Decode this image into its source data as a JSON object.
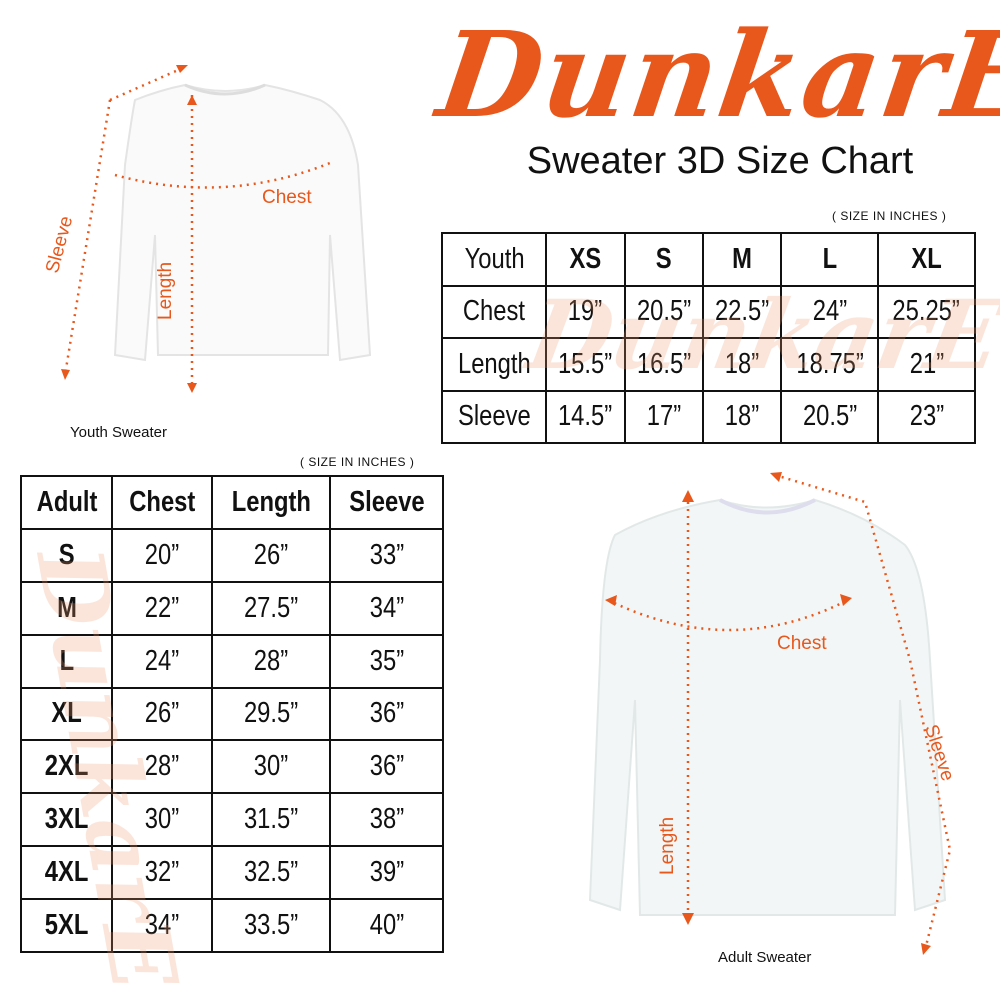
{
  "brand": {
    "logo_text": "DunkarE",
    "color": "#e8581c"
  },
  "title": "Sweater 3D Size Chart",
  "youth": {
    "units": "( SIZE IN INCHES )",
    "caption": "Youth Sweater",
    "diagram_labels": {
      "chest": "Chest",
      "length": "Length",
      "sleeve": "Sleeve"
    },
    "header": [
      "Youth",
      "XS",
      "S",
      "M",
      "L",
      "XL"
    ],
    "rows": [
      [
        "Chest",
        "19”",
        "20.5”",
        "22.5”",
        "24”",
        "25.25”"
      ],
      [
        "Length",
        "15.5”",
        "16.5”",
        "18”",
        "18.75”",
        "21”"
      ],
      [
        "Sleeve",
        "14.5”",
        "17”",
        "18”",
        "20.5”",
        "23”"
      ]
    ]
  },
  "adult": {
    "units": "( SIZE IN INCHES )",
    "caption": "Adult Sweater",
    "diagram_labels": {
      "chest": "Chest",
      "length": "Length",
      "sleeve": "Sleeve"
    },
    "header": [
      "Adult",
      "Chest",
      "Length",
      "Sleeve"
    ],
    "rows": [
      [
        "S",
        "20”",
        "26”",
        "33”"
      ],
      [
        "M",
        "22”",
        "27.5”",
        "34”"
      ],
      [
        "L",
        "24”",
        "28”",
        "35”"
      ],
      [
        "XL",
        "26”",
        "29.5”",
        "36”"
      ],
      [
        "2XL",
        "28”",
        "30”",
        "36”"
      ],
      [
        "3XL",
        "30”",
        "31.5”",
        "38”"
      ],
      [
        "4XL",
        "32”",
        "32.5”",
        "39”"
      ],
      [
        "5XL",
        "34”",
        "33.5”",
        "40”"
      ]
    ]
  }
}
